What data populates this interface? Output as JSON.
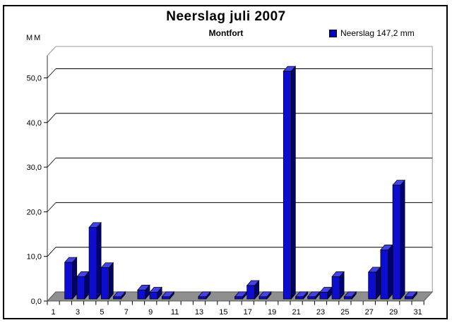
{
  "chart_data": {
    "type": "bar",
    "style": "3d-column",
    "title": "Neerslag juli 2007",
    "subtitle": "Montfort",
    "ylabel": "MM",
    "legend": {
      "label": "Neerslag 147,2 mm",
      "marker_color": "#0000c4",
      "position": "top-right"
    },
    "total_label_mm": "147,2",
    "categories": [
      1,
      2,
      3,
      4,
      5,
      6,
      7,
      8,
      9,
      10,
      11,
      12,
      13,
      14,
      15,
      16,
      17,
      18,
      19,
      20,
      21,
      22,
      23,
      24,
      25,
      26,
      27,
      28,
      29,
      30,
      31
    ],
    "values": [
      0,
      8.2,
      5,
      16,
      7,
      0.5,
      0,
      2,
      1.5,
      0.5,
      0,
      0,
      0.5,
      0,
      0,
      0.5,
      3,
      0.5,
      0,
      51,
      0.5,
      0.5,
      1.5,
      5,
      0.5,
      0,
      6,
      11,
      25.5,
      0.5,
      0
    ],
    "x_tick_labels": [
      "1",
      "3",
      "5",
      "7",
      "9",
      "11",
      "13",
      "15",
      "17",
      "19",
      "21",
      "23",
      "25",
      "27",
      "29",
      "31"
    ],
    "y_ticks": [
      0,
      10,
      20,
      30,
      40,
      50
    ],
    "y_tick_labels": [
      "0,0",
      "10,0",
      "20,0",
      "30,0",
      "40,0",
      "50,0"
    ],
    "ylim": [
      0,
      55
    ],
    "grid": true,
    "legend_position": "top-right",
    "colors": {
      "bar_front": "#0d0dcf",
      "bar_side": "#000070",
      "bar_top": "#4242e6",
      "floor": "#8f8f8f",
      "floor_edge": "#5a5a5a",
      "wall_line": "#999999",
      "axis_line": "#555555",
      "gridline": "#000000"
    }
  }
}
